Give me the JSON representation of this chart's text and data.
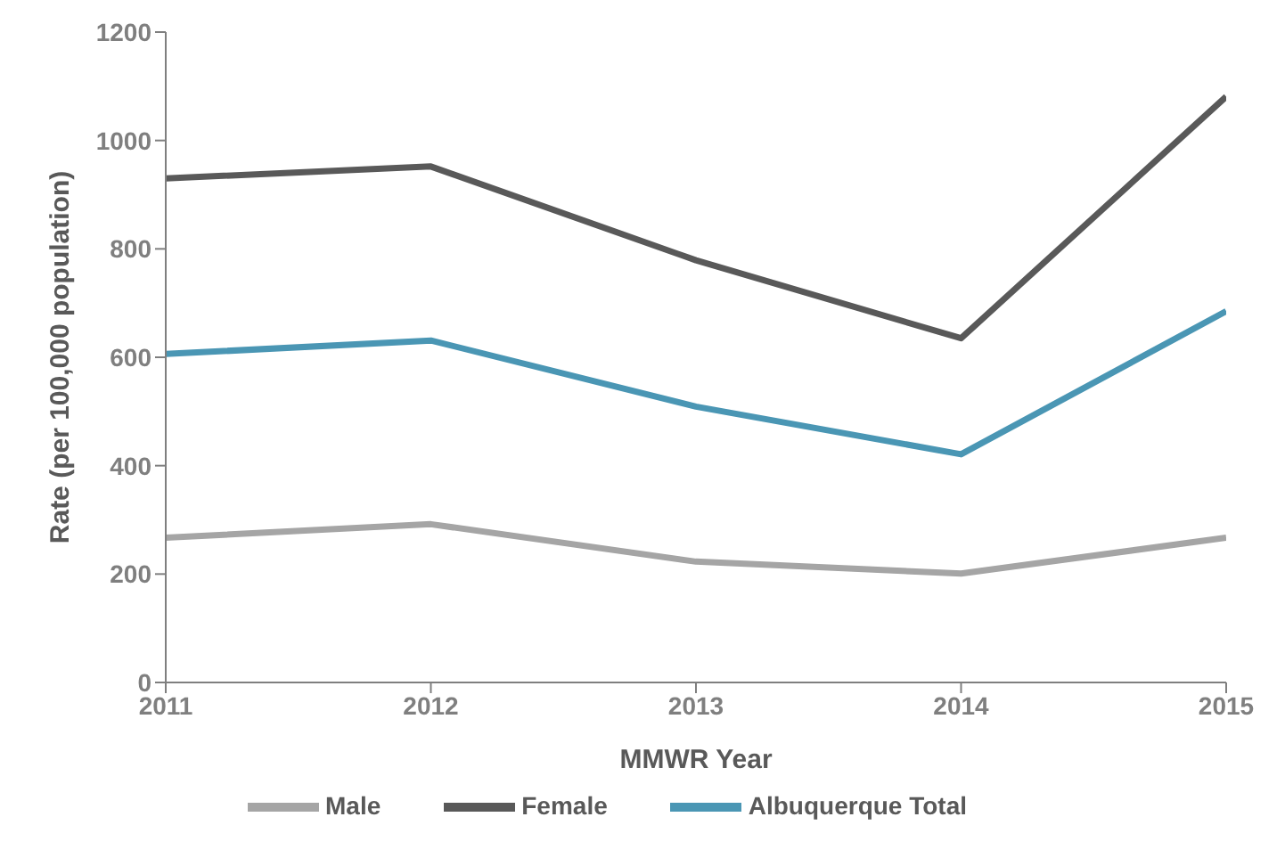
{
  "chart_data": {
    "type": "line",
    "xlabel": "MMWR Year",
    "ylabel": "Rate (per 100,000 population)",
    "x": [
      2011,
      2012,
      2013,
      2014,
      2015
    ],
    "xlim": [
      2011,
      2015
    ],
    "xticks": [
      2011,
      2012,
      2013,
      2014,
      2015
    ],
    "ylim": [
      0,
      1200
    ],
    "yticks": [
      0,
      200,
      400,
      600,
      800,
      1000,
      1200
    ],
    "grid": false,
    "legend": "bottom",
    "marker": "none",
    "series": [
      {
        "name": "Male",
        "color": "#a5a5a5",
        "values": [
          267,
          292,
          223,
          201,
          267
        ]
      },
      {
        "name": "Female",
        "color": "#595959",
        "values": [
          930,
          952,
          779,
          635,
          1081
        ]
      },
      {
        "name": "Albuquerque Total",
        "color": "#4a96b4",
        "values": [
          606,
          631,
          509,
          421,
          685
        ]
      }
    ]
  }
}
